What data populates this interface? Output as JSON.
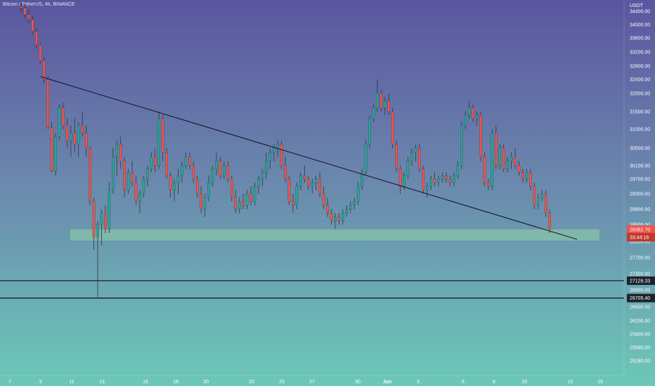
{
  "chart_data": {
    "type": "candlestick",
    "title": "Bitcoin / TetherUS, 4h, BINANCE",
    "currency": "USDT",
    "colors": {
      "up": "#26a69a",
      "down": "#ef5350",
      "line": "#1a1a2e",
      "zone": "#8fd3a6"
    },
    "y_ticks": [
      34400,
      34000,
      33600,
      33200,
      32800,
      32400,
      32000,
      31500,
      31000,
      30500,
      30100,
      29700,
      29300,
      28900,
      28500,
      28100,
      27700,
      27300,
      26900,
      26500,
      26200,
      25900,
      25580,
      25280
    ],
    "x_ticks": [
      "7",
      "9",
      "11",
      "13",
      "16",
      "18",
      "20",
      "23",
      "25",
      "27",
      "30",
      "Jun",
      "3",
      "6",
      "8",
      "10",
      "13",
      "15"
    ],
    "last_price": {
      "value": "28382.70",
      "countdown": "33:44:16"
    },
    "horizontal_lines": [
      {
        "label": "27126.33",
        "value": 27126.33
      },
      {
        "label": "26705.40",
        "value": 26705.4
      }
    ],
    "support_zone": {
      "from": 28120,
      "to": 28390
    },
    "trendline": {
      "start": {
        "date": "May 9",
        "price": 32480
      },
      "end": {
        "date": "Jun 13",
        "price": 28150
      }
    },
    "candles": [
      [
        34550,
        34700,
        34350,
        34500
      ],
      [
        34500,
        34620,
        34200,
        34300
      ],
      [
        34300,
        34450,
        34050,
        34150
      ],
      [
        34150,
        34250,
        33700,
        33800
      ],
      [
        33800,
        33900,
        33300,
        33400
      ],
      [
        33400,
        33450,
        32850,
        32950
      ],
      [
        32950,
        33050,
        32300,
        32400
      ],
      [
        32400,
        32500,
        31000,
        31050
      ],
      [
        31050,
        31200,
        29900,
        29950
      ],
      [
        29950,
        30900,
        29800,
        30800
      ],
      [
        30800,
        31700,
        30700,
        31600
      ],
      [
        31600,
        31750,
        31000,
        31100
      ],
      [
        31100,
        31300,
        30500,
        30700
      ],
      [
        30700,
        31100,
        30300,
        30900
      ],
      [
        30900,
        31300,
        30400,
        30600
      ],
      [
        30600,
        31200,
        30300,
        31100
      ],
      [
        31100,
        31500,
        30800,
        30900
      ],
      [
        30900,
        31100,
        30300,
        30500
      ],
      [
        30500,
        30550,
        29000,
        29100
      ],
      [
        29100,
        29200,
        27900,
        28200
      ],
      [
        28200,
        28600,
        26700,
        28500
      ],
      [
        28500,
        28900,
        28000,
        28800
      ],
      [
        28800,
        29000,
        28300,
        28400
      ],
      [
        28400,
        29600,
        28300,
        29400
      ],
      [
        29400,
        30500,
        29300,
        30300
      ],
      [
        30300,
        30700,
        29800,
        30600
      ],
      [
        30600,
        30800,
        30000,
        30200
      ],
      [
        30200,
        30300,
        29200,
        29400
      ],
      [
        29400,
        30000,
        29300,
        29900
      ],
      [
        29900,
        30200,
        29500,
        29600
      ],
      [
        29600,
        29800,
        29000,
        29100
      ],
      [
        29100,
        29400,
        28800,
        29300
      ],
      [
        29300,
        29800,
        29200,
        29700
      ],
      [
        29700,
        30100,
        29500,
        30000
      ],
      [
        30000,
        30400,
        29900,
        30300
      ],
      [
        30300,
        30500,
        29900,
        30100
      ],
      [
        30100,
        31500,
        30000,
        31300
      ],
      [
        31300,
        31400,
        30200,
        30400
      ],
      [
        30400,
        30500,
        29700,
        29800
      ],
      [
        29800,
        29900,
        29200,
        29400
      ],
      [
        29400,
        29700,
        29100,
        29600
      ],
      [
        29600,
        30000,
        29300,
        29800
      ],
      [
        29800,
        30200,
        29600,
        30100
      ],
      [
        30100,
        30400,
        30000,
        30300
      ],
      [
        30300,
        30400,
        30000,
        30100
      ],
      [
        30100,
        30200,
        29600,
        29700
      ],
      [
        29700,
        29800,
        29200,
        29300
      ],
      [
        29300,
        29500,
        28800,
        28900
      ],
      [
        28900,
        29300,
        28700,
        29200
      ],
      [
        29200,
        29800,
        29100,
        29600
      ],
      [
        29600,
        30100,
        29500,
        30000
      ],
      [
        30000,
        30400,
        29800,
        30200
      ],
      [
        30200,
        30300,
        29700,
        29800
      ],
      [
        29800,
        30200,
        29700,
        30100
      ],
      [
        30100,
        30200,
        29600,
        29700
      ],
      [
        29700,
        29800,
        29100,
        29200
      ],
      [
        29200,
        29400,
        28800,
        28900
      ],
      [
        28900,
        29200,
        28800,
        29100
      ],
      [
        29100,
        29300,
        28900,
        29000
      ],
      [
        29000,
        29400,
        28900,
        29300
      ],
      [
        29300,
        29500,
        29000,
        29100
      ],
      [
        29100,
        29600,
        29000,
        29500
      ],
      [
        29500,
        29800,
        29300,
        29700
      ],
      [
        29700,
        30000,
        29500,
        29900
      ],
      [
        29900,
        30400,
        29700,
        30200
      ],
      [
        30200,
        30500,
        30000,
        30400
      ],
      [
        30400,
        30600,
        30200,
        30500
      ],
      [
        30500,
        30700,
        30300,
        30600
      ],
      [
        30600,
        30700,
        30000,
        30100
      ],
      [
        30100,
        30300,
        29600,
        29700
      ],
      [
        29700,
        29800,
        29000,
        29100
      ],
      [
        29100,
        29300,
        28800,
        29000
      ],
      [
        29000,
        29600,
        28900,
        29500
      ],
      [
        29500,
        29900,
        29400,
        29800
      ],
      [
        29800,
        30100,
        29600,
        29700
      ],
      [
        29700,
        29800,
        29400,
        29500
      ],
      [
        29500,
        29700,
        29300,
        29600
      ],
      [
        29600,
        29800,
        29400,
        29700
      ],
      [
        29700,
        29900,
        29200,
        29300
      ],
      [
        29300,
        29500,
        28900,
        29000
      ],
      [
        29000,
        29200,
        28700,
        28800
      ],
      [
        28800,
        28900,
        28500,
        28600
      ],
      [
        28600,
        28800,
        28400,
        28700
      ],
      [
        28700,
        28800,
        28500,
        28600
      ],
      [
        28600,
        28900,
        28500,
        28800
      ],
      [
        28800,
        29000,
        28700,
        28900
      ],
      [
        28900,
        29100,
        28800,
        29000
      ],
      [
        29000,
        29200,
        28900,
        29100
      ],
      [
        29100,
        29600,
        29000,
        29500
      ],
      [
        29500,
        30000,
        29400,
        29900
      ],
      [
        29900,
        30700,
        29800,
        30600
      ],
      [
        30600,
        31400,
        30500,
        31300
      ],
      [
        31300,
        31700,
        31200,
        31600
      ],
      [
        31600,
        32400,
        31500,
        32000
      ],
      [
        32000,
        32100,
        31500,
        31600
      ],
      [
        31600,
        31900,
        31400,
        31800
      ],
      [
        31800,
        32000,
        31400,
        31500
      ],
      [
        31500,
        31600,
        30500,
        30600
      ],
      [
        30600,
        30700,
        29900,
        30000
      ],
      [
        30000,
        30100,
        29300,
        29500
      ],
      [
        29500,
        29900,
        29400,
        29800
      ],
      [
        29800,
        30300,
        29700,
        30200
      ],
      [
        30200,
        30500,
        30100,
        30400
      ],
      [
        30400,
        30600,
        30200,
        30500
      ],
      [
        30500,
        30600,
        29900,
        30000
      ],
      [
        30000,
        30100,
        29300,
        29400
      ],
      [
        29400,
        29600,
        29200,
        29500
      ],
      [
        29500,
        29800,
        29400,
        29700
      ],
      [
        29700,
        29900,
        29500,
        29600
      ],
      [
        29600,
        29800,
        29500,
        29700
      ],
      [
        29700,
        29900,
        29600,
        29800
      ],
      [
        29800,
        29900,
        29600,
        29700
      ],
      [
        29700,
        29800,
        29500,
        29600
      ],
      [
        29600,
        29900,
        29500,
        29800
      ],
      [
        29800,
        30200,
        29700,
        30100
      ],
      [
        30100,
        31200,
        30000,
        31100
      ],
      [
        31100,
        31500,
        31000,
        31400
      ],
      [
        31400,
        31800,
        31300,
        31600
      ],
      [
        31600,
        31700,
        31200,
        31300
      ],
      [
        31300,
        31500,
        31100,
        31400
      ],
      [
        31400,
        31500,
        30200,
        30300
      ],
      [
        30300,
        30400,
        29500,
        29600
      ],
      [
        29600,
        29700,
        29400,
        29500
      ],
      [
        29500,
        31000,
        29400,
        30900
      ],
      [
        30900,
        31100,
        30000,
        30100
      ],
      [
        30100,
        30600,
        30000,
        30500
      ],
      [
        30500,
        30600,
        29900,
        30000
      ],
      [
        30000,
        30300,
        29900,
        30200
      ],
      [
        30200,
        30400,
        30000,
        30300
      ],
      [
        30300,
        30500,
        30000,
        30100
      ],
      [
        30100,
        30200,
        29800,
        29900
      ],
      [
        29900,
        30000,
        29600,
        29700
      ],
      [
        29700,
        30000,
        29600,
        29900
      ],
      [
        29900,
        30000,
        29400,
        29500
      ],
      [
        29500,
        29600,
        28900,
        29000
      ],
      [
        29000,
        29300,
        28900,
        29200
      ],
      [
        29200,
        29400,
        29100,
        29300
      ],
      [
        29300,
        29400,
        28700,
        28800
      ],
      [
        28800,
        28900,
        28300,
        28400
      ]
    ]
  }
}
